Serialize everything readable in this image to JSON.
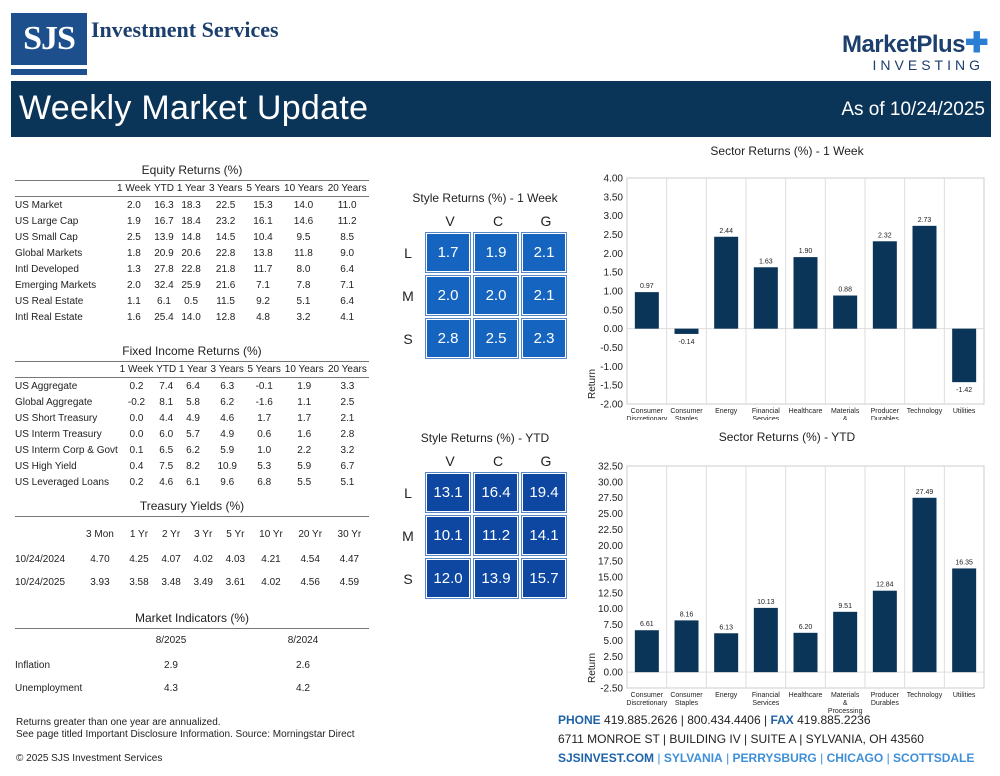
{
  "header": {
    "sjs_logo": "SJS",
    "sjs_name": "Investment Services",
    "mp_name": "MarketPlus",
    "mp_sub": "INVESTING",
    "title": "Weekly Market Update",
    "date": "As of 10/24/2025"
  },
  "equity": {
    "title": "Equity Returns (%)",
    "columns": [
      "1 Week",
      "YTD",
      "1 Year",
      "3 Years",
      "5 Years",
      "10 Years",
      "20 Years"
    ],
    "rows": [
      {
        "label": "US Market",
        "values": [
          "2.0",
          "16.3",
          "18.3",
          "22.5",
          "15.3",
          "14.0",
          "11.0"
        ]
      },
      {
        "label": "US Large Cap",
        "values": [
          "1.9",
          "16.7",
          "18.4",
          "23.2",
          "16.1",
          "14.6",
          "11.2"
        ]
      },
      {
        "label": "US Small Cap",
        "values": [
          "2.5",
          "13.9",
          "14.8",
          "14.5",
          "10.4",
          "9.5",
          "8.5"
        ]
      },
      {
        "label": "Global Markets",
        "values": [
          "1.8",
          "20.9",
          "20.6",
          "22.8",
          "13.8",
          "11.8",
          "9.0"
        ]
      },
      {
        "label": "Intl Developed",
        "values": [
          "1.3",
          "27.8",
          "22.8",
          "21.8",
          "11.7",
          "8.0",
          "6.4"
        ]
      },
      {
        "label": "Emerging Markets",
        "values": [
          "2.0",
          "32.4",
          "25.9",
          "21.6",
          "7.1",
          "7.8",
          "7.1"
        ]
      },
      {
        "label": "US Real Estate",
        "values": [
          "1.1",
          "6.1",
          "0.5",
          "11.5",
          "9.2",
          "5.1",
          "6.4"
        ]
      },
      {
        "label": "Intl Real Estate",
        "values": [
          "1.6",
          "25.4",
          "14.0",
          "12.8",
          "4.8",
          "3.2",
          "4.1"
        ]
      }
    ]
  },
  "fixed": {
    "title": "Fixed Income Returns (%)",
    "columns": [
      "1 Week",
      "YTD",
      "1 Year",
      "3 Years",
      "5 Years",
      "10 Years",
      "20 Years"
    ],
    "rows": [
      {
        "label": "US Aggregate",
        "values": [
          "0.2",
          "7.4",
          "6.4",
          "6.3",
          "-0.1",
          "1.9",
          "3.3"
        ]
      },
      {
        "label": "Global Aggregate",
        "values": [
          "-0.2",
          "8.1",
          "5.8",
          "6.2",
          "-1.6",
          "1.1",
          "2.5"
        ]
      },
      {
        "label": "US Short Treasury",
        "values": [
          "0.0",
          "4.4",
          "4.9",
          "4.6",
          "1.7",
          "1.7",
          "2.1"
        ]
      },
      {
        "label": "US Interm Treasury",
        "values": [
          "0.0",
          "6.0",
          "5.7",
          "4.9",
          "0.6",
          "1.6",
          "2.8"
        ]
      },
      {
        "label": "US Interm Corp & Govt",
        "values": [
          "0.1",
          "6.5",
          "6.2",
          "5.9",
          "1.0",
          "2.2",
          "3.2"
        ]
      },
      {
        "label": "US High Yield",
        "values": [
          "0.4",
          "7.5",
          "8.2",
          "10.9",
          "5.3",
          "5.9",
          "6.7"
        ]
      },
      {
        "label": "US Leveraged Loans",
        "values": [
          "0.2",
          "4.6",
          "6.1",
          "9.6",
          "6.8",
          "5.5",
          "5.1"
        ]
      }
    ]
  },
  "treasury": {
    "title": "Treasury Yields (%)",
    "columns": [
      "3 Mon",
      "1 Yr",
      "2 Yr",
      "3 Yr",
      "5 Yr",
      "10 Yr",
      "20 Yr",
      "30 Yr"
    ],
    "rows": [
      {
        "label": "10/24/2024",
        "values": [
          "4.70",
          "4.25",
          "4.07",
          "4.02",
          "4.03",
          "4.21",
          "4.54",
          "4.47"
        ]
      },
      {
        "label": "10/24/2025",
        "values": [
          "3.93",
          "3.58",
          "3.48",
          "3.49",
          "3.61",
          "4.02",
          "4.56",
          "4.59"
        ]
      }
    ]
  },
  "indicators": {
    "title": "Market Indicators (%)",
    "columns": [
      "8/2025",
      "8/2024"
    ],
    "rows": [
      {
        "label": "Inflation",
        "values": [
          "2.9",
          "2.6"
        ]
      },
      {
        "label": "Unemployment",
        "values": [
          "4.3",
          "4.2"
        ]
      }
    ]
  },
  "style_week": {
    "title": "Style Returns (%)  - 1 Week",
    "cols": [
      "V",
      "C",
      "G"
    ],
    "rows": [
      {
        "label": "L",
        "values": [
          "1.7",
          "1.9",
          "2.1"
        ]
      },
      {
        "label": "M",
        "values": [
          "2.0",
          "2.0",
          "2.1"
        ]
      },
      {
        "label": "S",
        "values": [
          "2.8",
          "2.5",
          "2.3"
        ]
      }
    ],
    "color": "#1565c0"
  },
  "style_ytd": {
    "title": "Style Returns (%)  - YTD",
    "cols": [
      "V",
      "C",
      "G"
    ],
    "rows": [
      {
        "label": "L",
        "values": [
          "13.1",
          "16.4",
          "19.4"
        ]
      },
      {
        "label": "M",
        "values": [
          "10.1",
          "11.2",
          "14.1"
        ]
      },
      {
        "label": "S",
        "values": [
          "12.0",
          "13.9",
          "15.7"
        ]
      }
    ],
    "color": "#0d47a1"
  },
  "chart_data": [
    {
      "type": "bar",
      "title": "Sector Returns (%)  - 1 Week",
      "ylabel": "Return",
      "categories": [
        "Consumer Discretionary",
        "Consumer Staples",
        "Energy",
        "Financial Services",
        "Healthcare",
        "Materials & Processing",
        "Producer Durables",
        "Technology",
        "Utilities"
      ],
      "values": [
        0.97,
        -0.14,
        2.44,
        1.63,
        1.9,
        0.88,
        2.32,
        2.73,
        -1.42
      ],
      "ylim": [
        -2.0,
        4.0
      ],
      "ticks": [
        "4.00",
        "3.50",
        "3.00",
        "2.50",
        "2.00",
        "1.50",
        "1.00",
        "0.50",
        "0.00",
        "-0.50",
        "-1.00",
        "-1.50",
        "-2.00"
      ],
      "color": "#0b3558"
    },
    {
      "type": "bar",
      "title": "Sector Returns (%)  - YTD",
      "ylabel": "Return",
      "categories": [
        "Consumer Discretionary",
        "Consumer Staples",
        "Energy",
        "Financial Services",
        "Healthcare",
        "Materials & Processing",
        "Producer Durables",
        "Technology",
        "Utilities"
      ],
      "values": [
        6.61,
        8.16,
        6.13,
        10.13,
        6.2,
        9.51,
        12.84,
        27.49,
        16.35
      ],
      "ylim": [
        -2.5,
        32.5
      ],
      "ticks": [
        "32.50",
        "30.00",
        "27.50",
        "25.00",
        "22.50",
        "20.00",
        "17.50",
        "15.00",
        "12.50",
        "10.00",
        "7.50",
        "5.00",
        "2.50",
        "0.00",
        "-2.50"
      ],
      "color": "#0b3558"
    }
  ],
  "footer": {
    "note1": "Returns greater than one year are annualized.",
    "note2": "See page titled Important Disclosure Information. Source: Morningstar Direct",
    "copyright": "© 2025 SJS Investment Services",
    "phone_label": "PHONE",
    "phone": "419.885.2626",
    "tollfree": "800.434.4406",
    "fax_label": "FAX",
    "fax": "419.885.2236",
    "address": "6711 MONROE ST  |  BUILDING IV  |  SUITE A  |  SYLVANIA, OH 43560",
    "web": "SJSINVEST.COM",
    "cities": [
      "SYLVANIA",
      "PERRYSBURG",
      "CHICAGO",
      "SCOTTSDALE"
    ]
  }
}
